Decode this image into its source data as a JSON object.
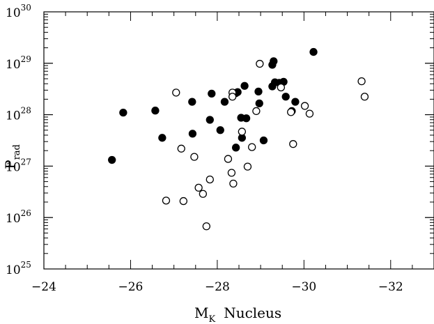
{
  "chart_data": {
    "type": "scatter",
    "xlabel": {
      "main": "M",
      "sub": "K",
      "rest": "Nucleus"
    },
    "ylabel": {
      "main": "P",
      "sub": "rad"
    },
    "xlim": [
      -24,
      -33
    ],
    "ylim_log10": [
      25,
      30
    ],
    "y_scale": "log",
    "x_ticks": [
      -24,
      -26,
      -28,
      -30,
      -32
    ],
    "x_tick_labels": [
      "−24",
      "−26",
      "−28",
      "−30",
      "−32"
    ],
    "y_tick_exponents": [
      25,
      26,
      27,
      28,
      29,
      30
    ],
    "y_tick_base": "10",
    "grid": false,
    "series": [
      {
        "marker": "filled-circle",
        "color": "#000000",
        "points": [
          [
            -25.57,
            27.12
          ],
          [
            -25.83,
            28.04
          ],
          [
            -26.57,
            28.08
          ],
          [
            -26.73,
            27.55
          ],
          [
            -27.42,
            28.25
          ],
          [
            -27.43,
            27.63
          ],
          [
            -27.87,
            28.41
          ],
          [
            -27.83,
            27.9
          ],
          [
            -28.07,
            27.7
          ],
          [
            -28.17,
            28.25
          ],
          [
            -28.47,
            28.44
          ],
          [
            -28.43,
            28.42
          ],
          [
            -28.63,
            28.56
          ],
          [
            -28.43,
            27.36
          ],
          [
            -28.55,
            27.94
          ],
          [
            -28.57,
            27.55
          ],
          [
            -28.67,
            27.93
          ],
          [
            -28.95,
            28.45
          ],
          [
            -28.97,
            28.22
          ],
          [
            -29.07,
            27.5
          ],
          [
            -29.27,
            28.97
          ],
          [
            -29.3,
            29.04
          ],
          [
            -29.27,
            28.55
          ],
          [
            -29.33,
            28.63
          ],
          [
            -29.43,
            28.62
          ],
          [
            -29.53,
            28.64
          ],
          [
            -29.58,
            28.35
          ],
          [
            -29.72,
            28.07
          ],
          [
            -29.8,
            28.25
          ],
          [
            -30.22,
            29.22
          ]
        ]
      },
      {
        "marker": "open-circle",
        "color": "#000000",
        "points": [
          [
            -26.82,
            26.33
          ],
          [
            -27.05,
            28.43
          ],
          [
            -27.17,
            27.34
          ],
          [
            -27.22,
            26.32
          ],
          [
            -27.47,
            27.18
          ],
          [
            -27.57,
            26.58
          ],
          [
            -27.67,
            26.46
          ],
          [
            -27.75,
            25.83
          ],
          [
            -27.83,
            26.74
          ],
          [
            -28.25,
            27.14
          ],
          [
            -28.33,
            26.87
          ],
          [
            -28.37,
            26.66
          ],
          [
            -28.7,
            26.99
          ],
          [
            -28.35,
            28.43
          ],
          [
            -28.35,
            28.35
          ],
          [
            -28.57,
            27.67
          ],
          [
            -28.8,
            27.37
          ],
          [
            -28.9,
            28.07
          ],
          [
            -28.98,
            28.99
          ],
          [
            -29.47,
            28.53
          ],
          [
            -29.7,
            28.05
          ],
          [
            -29.75,
            27.43
          ],
          [
            -30.02,
            28.17
          ],
          [
            -30.13,
            28.02
          ],
          [
            -31.33,
            28.65
          ],
          [
            -31.4,
            28.35
          ]
        ]
      }
    ]
  }
}
